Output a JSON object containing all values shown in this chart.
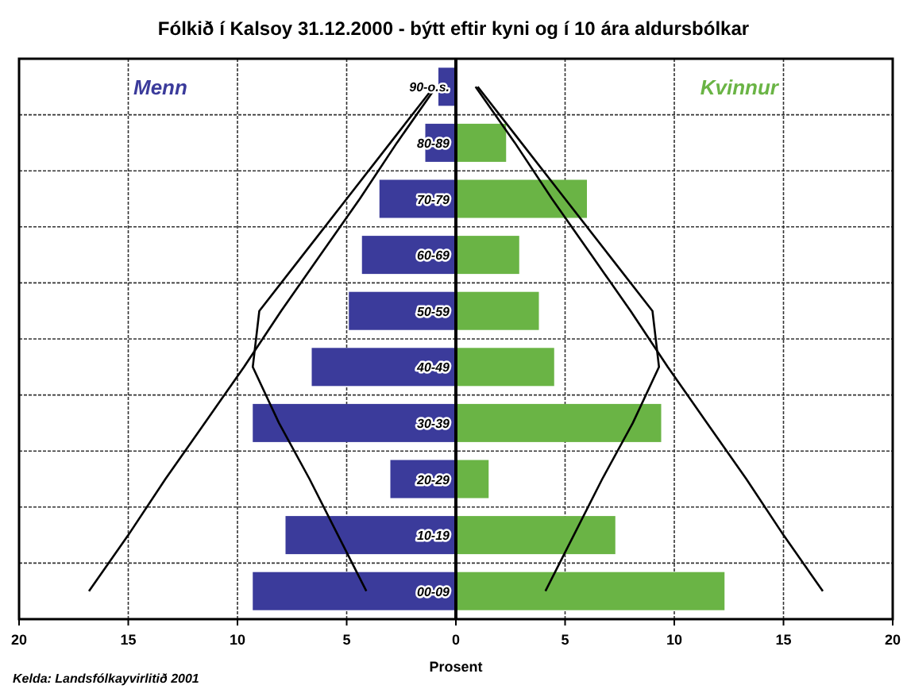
{
  "chart_data": {
    "type": "bar",
    "orientation": "horizontal",
    "title": "Fólkið í Kalsoy 31.12.2000 - býtt eftir kyni og í 10 ára aldursbólkar",
    "xlabel": "Prosent",
    "categories": [
      "90-o.s.",
      "80-89",
      "70-79",
      "60-69",
      "50-59",
      "40-49",
      "30-39",
      "20-29",
      "10-19",
      "00-09"
    ],
    "series": [
      {
        "name": "Menn",
        "color": "#3b3b9b",
        "values": [
          -0.8,
          -1.4,
          -3.5,
          -4.3,
          -4.9,
          -6.6,
          -9.3,
          -3.0,
          -7.8,
          -9.3
        ]
      },
      {
        "name": "Kvinnur",
        "color": "#6ab445",
        "values": [
          null,
          2.3,
          6.0,
          2.9,
          3.8,
          4.5,
          9.4,
          1.5,
          7.3,
          12.3
        ]
      },
      {
        "type": "line",
        "color": "#000000",
        "values": [
          -0.9,
          -2.7,
          -4.4,
          -6.2,
          -8.0,
          -9.7,
          -11.5,
          -13.3,
          -15.0,
          -16.8
        ]
      },
      {
        "type": "line",
        "color": "#000000",
        "values": [
          0.9,
          2.7,
          4.4,
          6.2,
          8.0,
          9.7,
          11.5,
          13.3,
          15.0,
          16.8
        ]
      },
      {
        "type": "line",
        "color": "#000000",
        "values": [
          -1.0,
          -3.0,
          -5.0,
          -7.0,
          -9.0,
          -9.3,
          -8.1,
          -6.7,
          -5.4,
          -4.1
        ]
      },
      {
        "type": "line",
        "color": "#000000",
        "values": [
          1.0,
          3.0,
          5.0,
          7.0,
          9.0,
          9.3,
          8.1,
          6.7,
          5.4,
          4.1
        ]
      }
    ],
    "xlim": [
      -20,
      20
    ],
    "xticks": [
      {
        "value": -20,
        "label": "20"
      },
      {
        "value": -15,
        "label": "15"
      },
      {
        "value": -10,
        "label": "10"
      },
      {
        "value": -5,
        "label": "5"
      },
      0,
      5,
      10,
      15,
      20
    ],
    "grid": true,
    "stacked": true,
    "annotations": [
      "Kelda: Landsfólkayvirlitið 2001"
    ]
  }
}
